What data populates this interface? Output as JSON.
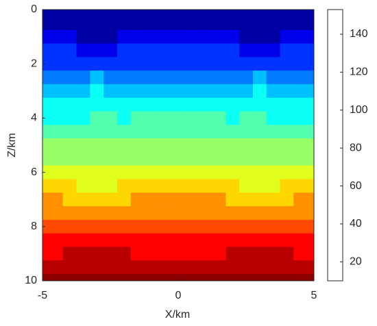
{
  "chart_data": {
    "type": "contourf",
    "x_label": "X/km",
    "y_label": "Z/km",
    "x": [
      -5,
      -4.5,
      -4,
      -3.5,
      -3,
      -2.5,
      -2,
      -1.5,
      -1,
      -0.5,
      0,
      0.5,
      1,
      1.5,
      2,
      2.5,
      3,
      3.5,
      4,
      4.5,
      5
    ],
    "y": [
      0,
      0.5,
      1,
      1.5,
      2,
      2.5,
      3,
      3.5,
      4,
      4.5,
      5,
      5.5,
      6,
      6.5,
      7,
      7.5,
      8,
      8.5,
      9,
      9.5,
      10
    ],
    "z": [
      [
        11,
        11,
        11,
        11,
        11,
        11,
        11,
        11,
        11,
        11,
        11,
        11,
        11,
        11,
        11,
        11,
        11,
        11,
        11,
        11,
        11
      ],
      [
        18,
        17,
        16,
        13,
        12,
        13,
        16,
        17,
        18,
        18,
        18,
        18,
        18,
        17,
        16,
        13,
        12,
        13,
        16,
        17,
        18
      ],
      [
        25,
        24,
        22,
        19,
        17,
        19,
        22,
        24,
        25,
        25,
        25,
        25,
        25,
        24,
        22,
        19,
        17,
        19,
        22,
        24,
        25
      ],
      [
        32,
        32,
        31,
        29,
        28,
        29,
        31,
        32,
        32,
        32,
        32,
        32,
        32,
        32,
        31,
        29,
        28,
        29,
        31,
        32,
        32
      ],
      [
        39,
        39,
        39,
        39,
        39,
        39,
        39,
        39,
        39,
        39,
        39,
        39,
        39,
        39,
        39,
        39,
        39,
        39,
        39,
        39,
        39
      ],
      [
        47,
        47,
        48,
        49,
        50,
        49,
        48,
        47,
        47,
        47,
        47,
        47,
        47,
        47,
        48,
        49,
        50,
        49,
        48,
        47,
        47
      ],
      [
        54,
        54,
        56,
        58,
        60,
        58,
        56,
        54,
        54,
        54,
        54,
        54,
        54,
        54,
        56,
        58,
        60,
        58,
        56,
        54,
        54
      ],
      [
        61,
        61,
        62,
        64,
        65,
        64,
        63,
        62,
        62,
        62,
        63,
        62,
        62,
        62,
        63,
        64,
        65,
        64,
        62,
        61,
        61
      ],
      [
        68,
        68,
        69,
        69,
        70,
        70,
        69,
        70,
        71,
        72,
        73,
        72,
        71,
        70,
        69,
        70,
        70,
        69,
        69,
        68,
        68
      ],
      [
        75,
        75,
        75,
        75,
        75,
        75,
        75,
        76,
        77,
        78,
        78,
        78,
        77,
        76,
        75,
        75,
        75,
        75,
        75,
        75,
        75
      ],
      [
        82,
        82,
        82,
        82,
        82,
        82,
        82,
        82,
        83,
        83,
        83,
        83,
        83,
        82,
        82,
        82,
        82,
        82,
        82,
        82,
        82
      ],
      [
        89,
        89,
        89,
        89,
        89,
        89,
        89,
        88,
        88,
        87,
        87,
        87,
        88,
        88,
        89,
        89,
        89,
        89,
        89,
        89,
        89
      ],
      [
        96,
        96,
        95,
        95,
        94,
        94,
        95,
        95,
        95,
        94,
        94,
        94,
        95,
        95,
        95,
        94,
        94,
        95,
        95,
        96,
        96
      ],
      [
        103,
        103,
        101,
        99,
        98,
        99,
        101,
        103,
        103,
        103,
        103,
        103,
        103,
        103,
        101,
        99,
        98,
        99,
        101,
        103,
        103
      ],
      [
        110,
        110,
        108,
        106,
        104,
        106,
        108,
        110,
        110,
        110,
        110,
        110,
        110,
        110,
        108,
        106,
        104,
        106,
        108,
        110,
        110
      ],
      [
        117,
        117,
        116,
        115,
        114,
        115,
        116,
        117,
        117,
        117,
        117,
        117,
        117,
        117,
        116,
        115,
        114,
        115,
        116,
        117,
        117
      ],
      [
        125,
        125,
        125,
        125,
        125,
        125,
        125,
        125,
        125,
        125,
        125,
        125,
        125,
        125,
        125,
        125,
        125,
        125,
        125,
        125,
        125
      ],
      [
        132,
        132,
        133,
        134,
        135,
        134,
        133,
        132,
        132,
        132,
        132,
        132,
        132,
        132,
        133,
        134,
        135,
        134,
        133,
        132,
        132
      ],
      [
        139,
        139,
        141,
        143,
        144,
        143,
        141,
        139,
        139,
        139,
        139,
        139,
        139,
        139,
        141,
        143,
        144,
        143,
        141,
        139,
        139
      ],
      [
        146,
        146,
        147,
        148,
        149,
        148,
        147,
        146,
        146,
        146,
        146,
        146,
        146,
        146,
        147,
        148,
        149,
        148,
        147,
        146,
        146
      ],
      [
        153,
        153,
        153,
        153,
        153,
        153,
        153,
        153,
        153,
        153,
        153,
        153,
        153,
        153,
        153,
        153,
        153,
        153,
        153,
        153,
        153
      ]
    ],
    "levels": [
      10,
      20,
      30,
      40,
      50,
      60,
      70,
      80,
      90,
      100,
      110,
      120,
      130,
      140,
      150
    ],
    "colormap": "jet",
    "xlim": [
      -5,
      5
    ],
    "xticks": [
      -5,
      0,
      5
    ],
    "ylim": [
      0,
      10
    ],
    "yticks": [
      0,
      2,
      4,
      6,
      8,
      10
    ],
    "y_reversed": true,
    "clim": [
      10,
      153
    ],
    "cticks": [
      20,
      40,
      60,
      80,
      100,
      120,
      140
    ]
  }
}
